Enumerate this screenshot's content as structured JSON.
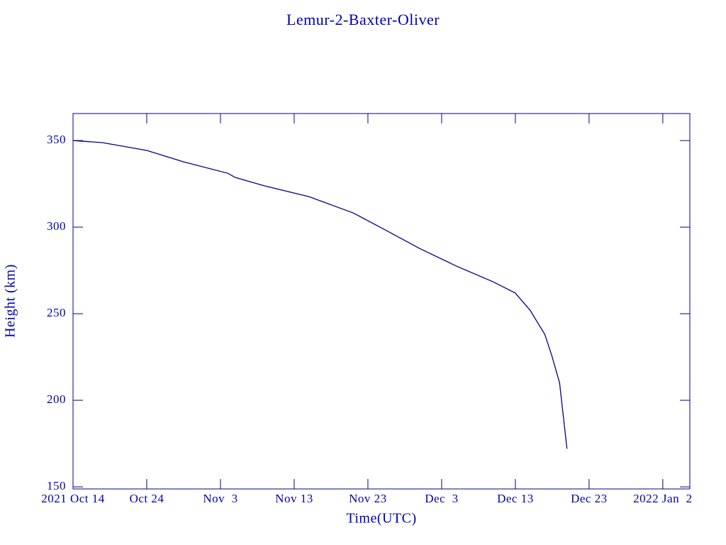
{
  "chart_data": {
    "type": "line",
    "title": "Lemur-2-Baxter-Oliver",
    "x_label": "Time(UTC)",
    "y_label": "Height (km)",
    "color": "#00008b",
    "x": [
      "2021-10-14",
      "2021-10-18",
      "2021-10-24",
      "2021-10-29",
      "2021-11-04",
      "2021-11-05",
      "2021-11-09",
      "2021-11-15",
      "2021-11-21",
      "2021-11-25",
      "2021-11-30",
      "2021-12-05",
      "2021-12-10",
      "2021-12-13",
      "2021-12-15",
      "2021-12-17",
      "2021-12-18",
      "2021-12-19",
      "2021-12-20"
    ],
    "values": [
      350,
      348.8,
      344.3,
      337.7,
      331.1,
      328.7,
      323.8,
      317.6,
      308.2,
      299.2,
      287.7,
      277.5,
      268.4,
      261.9,
      252,
      238,
      225,
      210,
      172
    ],
    "xlim": [
      "2021-10-14",
      "2022-01-05T16:00"
    ],
    "xticks": [
      {
        "value": "2021-10-14",
        "label": "2021 Oct 14"
      },
      {
        "value": "2021-10-24",
        "label": "Oct 24"
      },
      {
        "value": "2021-11-03",
        "label": "Nov  3"
      },
      {
        "value": "2021-11-13",
        "label": "Nov 13"
      },
      {
        "value": "2021-11-23",
        "label": "Nov 23"
      },
      {
        "value": "2021-12-03",
        "label": "Dec  3"
      },
      {
        "value": "2021-12-13",
        "label": "Dec 13"
      },
      {
        "value": "2021-12-23",
        "label": "Dec 23"
      },
      {
        "value": "2022-01-02",
        "label": "2022 Jan  2"
      }
    ],
    "ylim": [
      148.8,
      365.6
    ],
    "yticks": [
      150,
      200,
      250,
      300,
      350
    ]
  }
}
